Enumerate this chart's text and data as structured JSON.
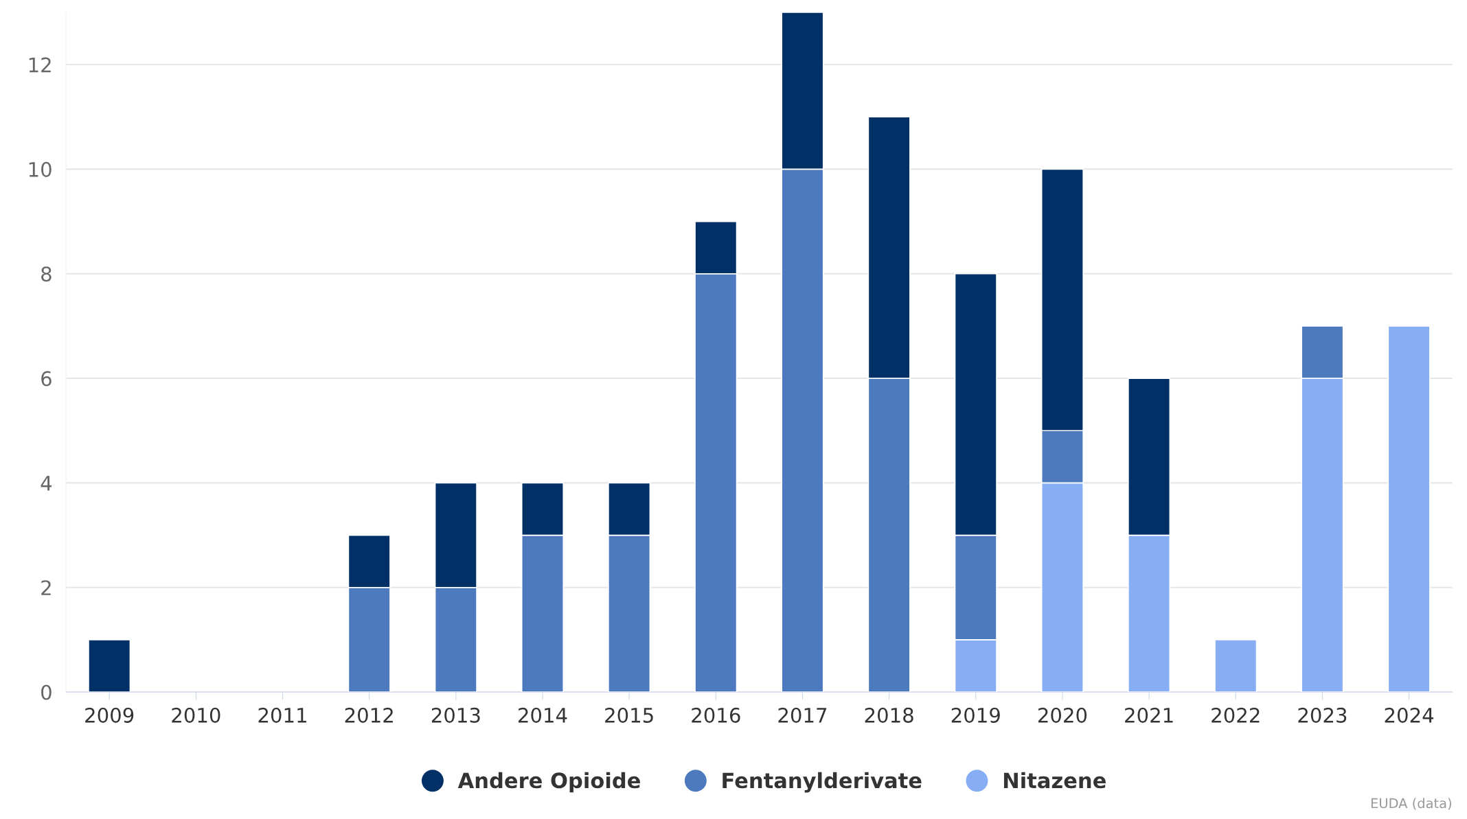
{
  "chart_data": {
    "type": "bar",
    "stacked": true,
    "categories": [
      "2009",
      "2010",
      "2011",
      "2012",
      "2013",
      "2014",
      "2015",
      "2016",
      "2017",
      "2018",
      "2019",
      "2020",
      "2021",
      "2022",
      "2023",
      "2024"
    ],
    "series": [
      {
        "name": "Nitazene",
        "color": "#87aef5",
        "values": [
          0,
          0,
          0,
          0,
          0,
          0,
          0,
          0,
          0,
          0,
          1,
          4,
          3,
          1,
          6,
          7
        ]
      },
      {
        "name": "Fentanylderivate",
        "color": "#4d7abf",
        "values": [
          0,
          0,
          0,
          2,
          2,
          3,
          3,
          8,
          10,
          6,
          2,
          1,
          0,
          0,
          1,
          0
        ]
      },
      {
        "name": "Andere Opioide",
        "color": "#003066",
        "values": [
          1,
          0,
          0,
          1,
          2,
          1,
          1,
          1,
          3,
          5,
          5,
          5,
          3,
          0,
          0,
          0
        ]
      }
    ],
    "ylim": [
      0,
      13
    ],
    "yticks": [
      0,
      2,
      4,
      6,
      8,
      10,
      12
    ],
    "grid": "y",
    "legend": "bottom",
    "annotations": [
      "EUDA (data)"
    ]
  }
}
